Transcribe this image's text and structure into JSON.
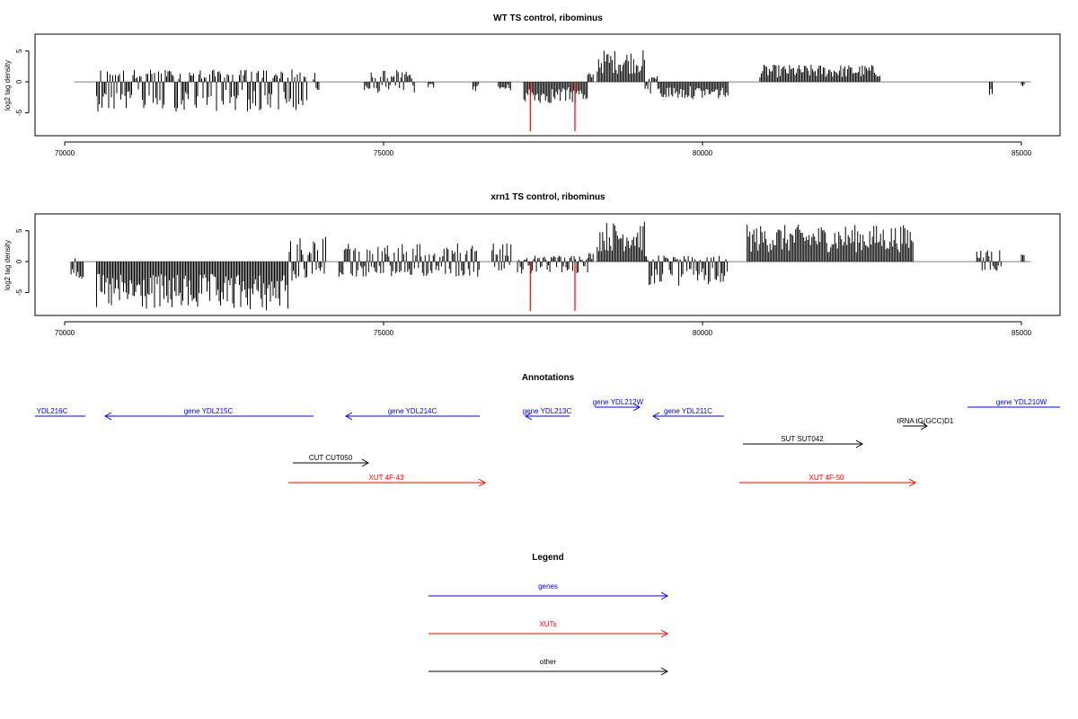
{
  "colors": {
    "gene": "#0000ff",
    "xut": "#ff0000",
    "other": "#000000",
    "highlight": "#ff0000",
    "bar": "#000000",
    "zero_line": "#808080"
  },
  "chart_data": [
    {
      "type": "bar",
      "title": "WT TS control, ribominus",
      "ylabel": "log2 tag density",
      "xlim": [
        70000,
        85000
      ],
      "ylim": [
        -8,
        7
      ],
      "xticks": [
        70000,
        75000,
        80000,
        85000
      ],
      "yticks": [
        -5,
        0,
        5
      ],
      "highlight_x": [
        77300,
        78000
      ],
      "highlight_value": -8,
      "zero_line_x": [
        70150,
        85150
      ],
      "bars": [
        {
          "x0": 70500,
          "x1": 73800,
          "min": -4.8,
          "max": 2
        },
        {
          "x0": 73900,
          "x1": 74000,
          "min": -1.5,
          "max": 1.5
        },
        {
          "x0": 74700,
          "x1": 75500,
          "min": -1.8,
          "max": 2
        },
        {
          "x0": 75700,
          "x1": 75800,
          "min": -1.0,
          "max": 0
        },
        {
          "x0": 76400,
          "x1": 76500,
          "min": -1.5,
          "max": 0
        },
        {
          "x0": 76800,
          "x1": 77000,
          "min": -1.5,
          "max": 0
        },
        {
          "x0": 77200,
          "x1": 78200,
          "min": -3.5,
          "max": 0
        },
        {
          "x0": 78200,
          "x1": 78300,
          "min": 0,
          "max": 1.5
        },
        {
          "x0": 78350,
          "x1": 79100,
          "min": 0,
          "max": 5.2
        },
        {
          "x0": 79100,
          "x1": 79300,
          "min": -2,
          "max": 1
        },
        {
          "x0": 79300,
          "x1": 80400,
          "min": -2.8,
          "max": 0
        },
        {
          "x0": 80900,
          "x1": 82800,
          "min": 0,
          "max": 2.8
        },
        {
          "x0": 84500,
          "x1": 84550,
          "min": -2.5,
          "max": 0
        },
        {
          "x0": 85000,
          "x1": 85050,
          "min": -1,
          "max": 0
        }
      ]
    },
    {
      "type": "bar",
      "title": "xrn1 TS control, ribominus",
      "ylabel": "log2 tag density",
      "xlim": [
        70000,
        85000
      ],
      "ylim": [
        -8,
        7
      ],
      "xticks": [
        70000,
        75000,
        80000,
        85000
      ],
      "yticks": [
        -5,
        0,
        5
      ],
      "highlight_x": [
        77300,
        78000
      ],
      "highlight_value": -8,
      "zero_line_x": [
        70150,
        85150
      ],
      "bars": [
        {
          "x0": 70100,
          "x1": 70300,
          "min": -3,
          "max": 2
        },
        {
          "x0": 70500,
          "x1": 73500,
          "min": -8,
          "max": 0
        },
        {
          "x0": 73500,
          "x1": 74100,
          "min": -3.5,
          "max": 4
        },
        {
          "x0": 74300,
          "x1": 76500,
          "min": -2.5,
          "max": 3
        },
        {
          "x0": 76700,
          "x1": 77000,
          "min": -1.5,
          "max": 3
        },
        {
          "x0": 77100,
          "x1": 78200,
          "min": -2,
          "max": 1
        },
        {
          "x0": 78200,
          "x1": 78300,
          "min": 0,
          "max": 1.5
        },
        {
          "x0": 78350,
          "x1": 79100,
          "min": 0,
          "max": 6.5
        },
        {
          "x0": 79100,
          "x1": 80400,
          "min": -4,
          "max": 1
        },
        {
          "x0": 80700,
          "x1": 83300,
          "min": 0,
          "max": 6
        },
        {
          "x0": 84300,
          "x1": 84700,
          "min": -2.5,
          "max": 2
        },
        {
          "x0": 85000,
          "x1": 85050,
          "min": 0,
          "max": 3
        }
      ]
    }
  ],
  "annotations": {
    "title": "Annotations",
    "items": [
      {
        "label": "YDL216C",
        "type": "gene",
        "direction": "none",
        "row": 0
      },
      {
        "label": "gene YDL215C",
        "type": "gene",
        "direction": "left",
        "row": 0
      },
      {
        "label": "gene YDL214C",
        "type": "gene",
        "direction": "left",
        "row": 0
      },
      {
        "label": "gene YDL213C",
        "type": "gene",
        "direction": "left",
        "row": 0
      },
      {
        "label": "gene YDL212W",
        "type": "gene",
        "direction": "right",
        "row": 0
      },
      {
        "label": "gene YDL211C",
        "type": "gene",
        "direction": "left",
        "row": 0
      },
      {
        "label": "gene YDL210W",
        "type": "gene",
        "direction": "none",
        "row": 0
      },
      {
        "label": "tRNA tG(GCC)D1",
        "type": "other",
        "direction": "right",
        "row": 1
      },
      {
        "label": "SUT SUT042",
        "type": "other",
        "direction": "right",
        "row": 2
      },
      {
        "label": "CUT CUT050",
        "type": "other",
        "direction": "right",
        "row": 3
      },
      {
        "label": "XUT 4F-43",
        "type": "xut",
        "direction": "right",
        "row": 4
      },
      {
        "label": "XUT 4F-50",
        "type": "xut",
        "direction": "right",
        "row": 4
      }
    ]
  },
  "legend": {
    "title": "Legend",
    "items": [
      {
        "label": "genes",
        "type": "gene"
      },
      {
        "label": "XUTs",
        "type": "xut"
      },
      {
        "label": "other",
        "type": "other"
      }
    ]
  }
}
